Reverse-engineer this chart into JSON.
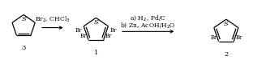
{
  "bg_color": "#ffffff",
  "figsize": [
    3.12,
    0.75
  ],
  "dpi": 100,
  "arrow1_label": "Br$_2$, CHCl$_3$",
  "arrow2_label_a": "a) H$_2$, Pd/C",
  "arrow2_label_b": "b) Zn, AcOH/H$_2$O",
  "compound3_label": "3",
  "compound1_label": "1",
  "compound2_label": "2",
  "lw": 0.9,
  "fs_label": 5.5,
  "fs_br": 5.0,
  "fs_num": 6.0,
  "fs_s": 6.0
}
